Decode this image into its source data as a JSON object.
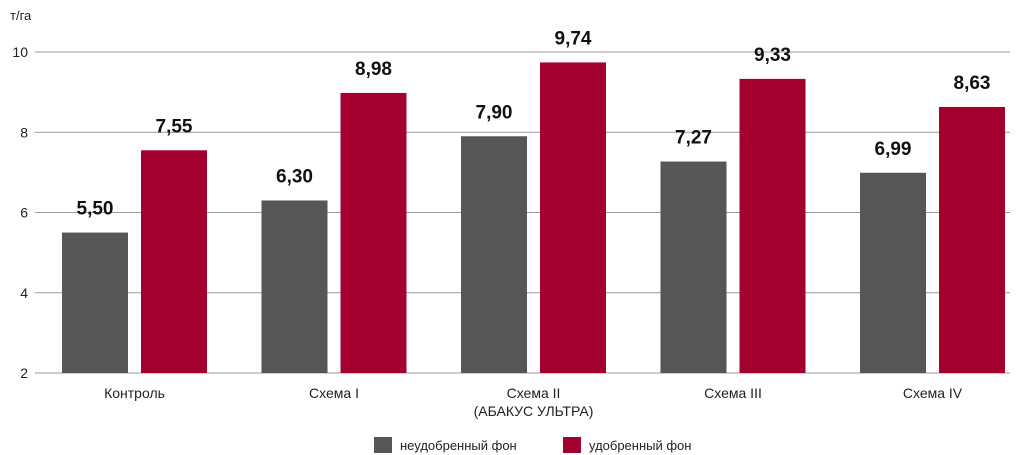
{
  "colors": {
    "series_1": "#565656",
    "series_2": "#a3002f",
    "grid": "#9a9a9a",
    "text": "#222222"
  },
  "chart_data": {
    "type": "bar",
    "title": "",
    "ylabel": "т/га",
    "xlabel": "",
    "ylim": [
      2,
      10
    ],
    "yticks": [
      2,
      4,
      6,
      8,
      10
    ],
    "grid": true,
    "legend_position": "bottom",
    "categories": [
      [
        "Контроль"
      ],
      [
        "Схема I"
      ],
      [
        "Схема II",
        "(АБАКУС УЛЬТРА)"
      ],
      [
        "Схема III"
      ],
      [
        "Схема IV"
      ]
    ],
    "series": [
      {
        "name": "неудобренный фон",
        "values": [
          5.5,
          6.3,
          7.9,
          7.27,
          6.99
        ],
        "labels": [
          "5,50",
          "6,30",
          "7,90",
          "7,27",
          "6,99"
        ]
      },
      {
        "name": "удобренный фон",
        "values": [
          7.55,
          8.98,
          9.74,
          9.33,
          8.63
        ],
        "labels": [
          "7,55",
          "8,98",
          "9,74",
          "9,33",
          "8,63"
        ]
      }
    ]
  }
}
